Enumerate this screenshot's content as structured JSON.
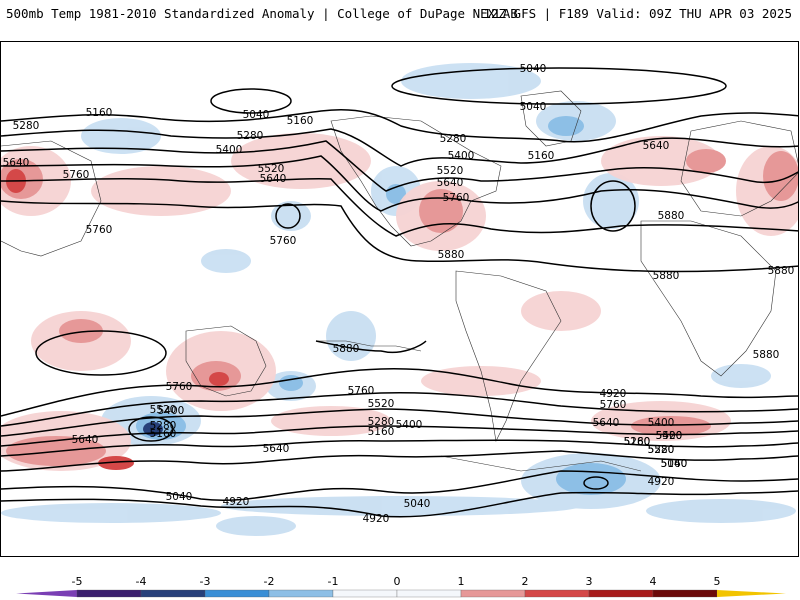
{
  "header": {
    "left_title": "500mb Temp 1981-2010 Standardized Anomaly | College of DuPage NEXLAB",
    "right_title": "12Z GFS | F189 Valid: 09Z THU APR 03 2025"
  },
  "map": {
    "contour_labels": [
      "5040",
      "5040",
      "5040",
      "5160",
      "5160",
      "5160",
      "5280",
      "5280",
      "5280",
      "5400",
      "5400",
      "5520",
      "5520",
      "5640",
      "5640",
      "5640",
      "5640",
      "5760",
      "5760",
      "5760",
      "5760",
      "5880",
      "5880",
      "5880",
      "5880",
      "5880",
      "5160",
      "5280",
      "5400",
      "5520",
      "5640",
      "5760",
      "5880",
      "5880",
      "5520",
      "5280",
      "5160",
      "5400",
      "5640",
      "5760",
      "5520",
      "5400",
      "5280",
      "5160",
      "5040",
      "4920",
      "5760",
      "5640",
      "5400",
      "5520",
      "5280",
      "5160",
      "5040",
      "4920",
      "5040",
      "4920",
      "4920"
    ]
  },
  "legend": {
    "labels": [
      "-5",
      "-4",
      "-3",
      "-2",
      "-1",
      "0",
      "1",
      "2",
      "3",
      "4",
      "5"
    ],
    "colors": [
      "#3b1f6e",
      "#27407a",
      "#3a8fd6",
      "#8dbfe6",
      "#d5e6f5",
      "#ffffff",
      "#f6d3d3",
      "#e69898",
      "#d44848",
      "#a71c1c",
      "#6b0a0a"
    ],
    "end_colors": {
      "low": "#7a3fb4",
      "high": "#f2c400"
    }
  }
}
